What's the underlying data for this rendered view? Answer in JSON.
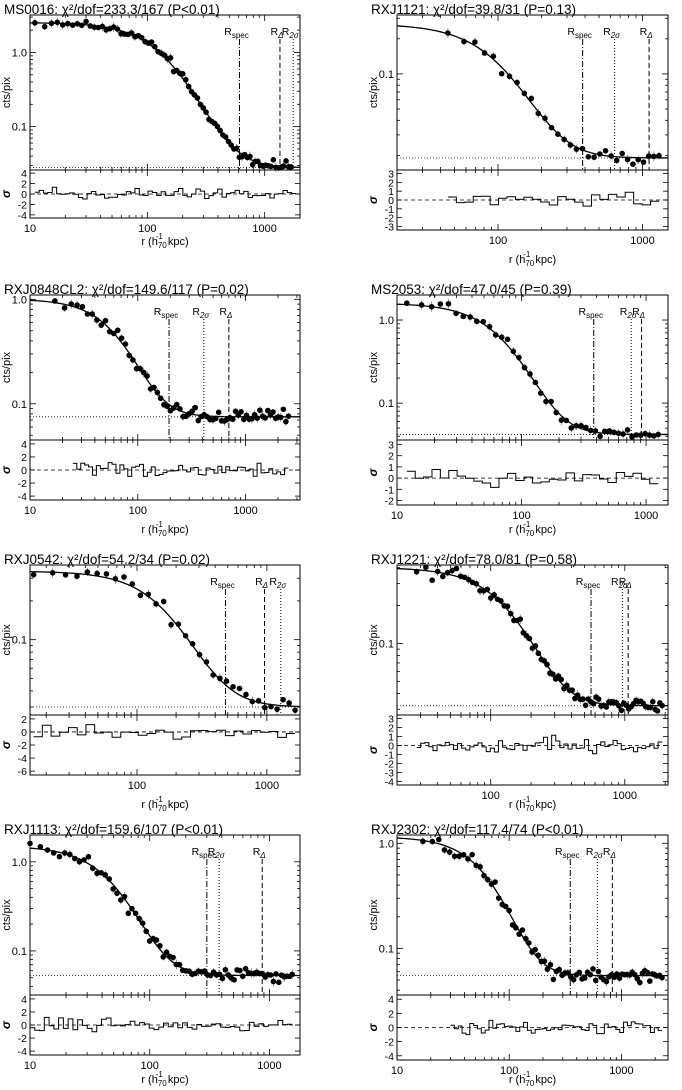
{
  "figure": {
    "curve_color": "#000000",
    "point_color": "#000000",
    "background": "#ffffff",
    "shared_xlabel": "r (h70^-1 kpc)",
    "upper_ylabel": "cts/pix",
    "lower_ylabel": "σ"
  },
  "chart_data": [
    {
      "type": "scatter",
      "title": "MS0016: χ²/dof=233.3/167 (P<0.01)",
      "xlabel": "r (h70^-1 kpc)",
      "ylabel": "cts/pix",
      "xscale": "log",
      "yscale": "log",
      "xlim": [
        10,
        2000
      ],
      "ylim": [
        0.026,
        3.2
      ],
      "xticks": [
        10,
        100,
        1000
      ],
      "yticks": [
        0.1,
        1.0
      ],
      "ytick_labels": [
        "0.1",
        "1.0"
      ],
      "model": {
        "S0": 2.5,
        "rc": 150,
        "beta": 0.75,
        "bg": 0.028
      },
      "background_level": 0.028,
      "data_points": {
        "r_min": 11,
        "r_max": 1850,
        "n": 80,
        "scatter_dex": 0.04
      },
      "markers": [
        {
          "label": "R_spec",
          "r": 610,
          "style": "dashdot"
        },
        {
          "label": "R_Δ",
          "r": 1350,
          "style": "dashed"
        },
        {
          "label": "R_2σ",
          "r": 1750,
          "style": "dotted"
        }
      ],
      "residuals": {
        "ylabel": "σ",
        "ylim": [
          -4.6,
          4.6
        ],
        "yticks": [
          -4,
          -2,
          0,
          2,
          4
        ],
        "amplitude": 1.3,
        "bin_start": 11,
        "bin_end": 1850,
        "n_bins": 60
      }
    },
    {
      "type": "scatter",
      "title": "RXJ1121: χ²/dof=39.8/31 (P=0.13)",
      "xlabel": "r (h70^-1 kpc)",
      "ylabel": "cts/pix",
      "xscale": "log",
      "yscale": "log",
      "xlim": [
        20,
        1500
      ],
      "ylim": [
        0.015,
        0.32
      ],
      "xticks": [
        100,
        1000
      ],
      "yticks": [
        0.1
      ],
      "ytick_labels": [
        "0.1"
      ],
      "model": {
        "S0": 0.25,
        "rc": 130,
        "beta": 0.8,
        "bg": 0.019
      },
      "background_level": 0.019,
      "data_points": {
        "r_min": 45,
        "r_max": 1300,
        "n": 32,
        "scatter_dex": 0.04
      },
      "markers": [
        {
          "label": "R_spec",
          "r": 385,
          "style": "dashdot"
        },
        {
          "label": "R_2σ",
          "r": 640,
          "style": "dotted"
        },
        {
          "label": "R_Δ",
          "r": 1110,
          "style": "dashed"
        }
      ],
      "residuals": {
        "ylabel": "σ",
        "ylim": [
          -3.4,
          3.4
        ],
        "yticks": [
          -3,
          -2,
          -1,
          0,
          1,
          2,
          3
        ],
        "amplitude": 1.1,
        "bin_start": 45,
        "bin_end": 1300,
        "n_bins": 25
      }
    },
    {
      "type": "scatter",
      "title": "RXJ0848CL2: χ²/dof=149.6/117 (P=0.02)",
      "xlabel": "r (h70^-1 kpc)",
      "ylabel": "cts/pix",
      "xscale": "log",
      "yscale": "log",
      "xlim": [
        10,
        3200
      ],
      "ylim": [
        0.045,
        1.1
      ],
      "xticks": [
        10,
        100,
        1000
      ],
      "yticks": [
        0.1,
        1.0
      ],
      "ytick_labels": [
        "0.1",
        "1.0"
      ],
      "model": {
        "S0": 0.93,
        "rc": 80,
        "beta": 0.8,
        "bg": 0.075
      },
      "background_level": 0.075,
      "data_points": {
        "r_min": 17,
        "r_max": 2500,
        "n": 70,
        "scatter_dex": 0.05
      },
      "markers": [
        {
          "label": "R_spec",
          "r": 195,
          "style": "dashdot"
        },
        {
          "label": "R_2σ",
          "r": 410,
          "style": "dotted"
        },
        {
          "label": "R_Δ",
          "r": 700,
          "style": "dashed"
        }
      ],
      "residuals": {
        "ylabel": "σ",
        "ylim": [
          -4.6,
          4.6
        ],
        "yticks": [
          -4,
          -2,
          0,
          2,
          4
        ],
        "amplitude": 1.4,
        "bin_start": 25,
        "bin_end": 2500,
        "n_bins": 55
      }
    },
    {
      "type": "scatter",
      "title": "MS2053: χ²/dof=47.0/45 (P=0.39)",
      "xlabel": "r (h70^-1 kpc)",
      "ylabel": "cts/pix",
      "xscale": "log",
      "yscale": "log",
      "xlim": [
        10,
        1500
      ],
      "ylim": [
        0.036,
        2.0
      ],
      "xticks": [
        10,
        100,
        1000
      ],
      "yticks": [
        0.1,
        1.0
      ],
      "ytick_labels": [
        "0.1",
        "1.0"
      ],
      "model": {
        "S0": 1.55,
        "rc": 85,
        "beta": 0.85,
        "bg": 0.042
      },
      "background_level": 0.042,
      "data_points": {
        "r_min": 12,
        "r_max": 1250,
        "n": 45,
        "scatter_dex": 0.04
      },
      "markers": [
        {
          "label": "R_spec",
          "r": 380,
          "style": "dashdot"
        },
        {
          "label": "R_2σ",
          "r": 760,
          "style": "dotted"
        },
        {
          "label": "R_Δ",
          "r": 920,
          "style": "dashed"
        }
      ],
      "residuals": {
        "ylabel": "σ",
        "ylim": [
          -2.4,
          3.4
        ],
        "yticks": [
          -2,
          -1,
          0,
          1,
          2,
          3
        ],
        "amplitude": 1.0,
        "bin_start": 12,
        "bin_end": 1250,
        "n_bins": 30
      }
    },
    {
      "type": "scatter",
      "title": "RXJ0542: χ²/dof=54.2/34 (P=0.02)",
      "xlabel": "r (h70^-1 kpc)",
      "ylabel": "cts/pix",
      "xscale": "log",
      "yscale": "log",
      "xlim": [
        15,
        1800
      ],
      "ylim": [
        0.026,
        0.38
      ],
      "xticks": [
        100,
        1000
      ],
      "yticks": [
        0.1
      ],
      "ytick_labels": [
        "0.1"
      ],
      "model": {
        "S0": 0.31,
        "rc": 200,
        "beta": 0.7,
        "bg": 0.03
      },
      "background_level": 0.03,
      "data_points": {
        "r_min": 16,
        "r_max": 1650,
        "n": 34,
        "scatter_dex": 0.04
      },
      "markers": [
        {
          "label": "R_spec",
          "r": 480,
          "style": "dashdot"
        },
        {
          "label": "R_Δ",
          "r": 960,
          "style": "dashed"
        },
        {
          "label": "R_2σ",
          "r": 1280,
          "style": "dotted"
        }
      ],
      "residuals": {
        "ylabel": "σ",
        "ylim": [
          -6.6,
          2.6
        ],
        "yticks": [
          -6,
          -4,
          -2,
          0,
          2
        ],
        "amplitude": 1.5,
        "bin_start": 16,
        "bin_end": 1650,
        "n_bins": 30
      }
    },
    {
      "type": "scatter",
      "title": "RXJ1221: χ²/dof=78.0/81 (P=0.58)",
      "xlabel": "r (h70^-1 kpc)",
      "ylabel": "cts/pix",
      "xscale": "log",
      "yscale": "log",
      "xlim": [
        20,
        2100
      ],
      "ylim": [
        0.027,
        0.42
      ],
      "xticks": [
        100,
        1000
      ],
      "yticks": [
        0.1
      ],
      "ytick_labels": [
        "0.1"
      ],
      "model": {
        "S0": 0.37,
        "rc": 190,
        "beta": 0.9,
        "bg": 0.032
      },
      "background_level": 0.032,
      "data_points": {
        "r_min": 28,
        "r_max": 1900,
        "n": 80,
        "scatter_dex": 0.035
      },
      "markers": [
        {
          "label": "R_spec",
          "r": 560,
          "style": "dashdot"
        },
        {
          "label": "R_2σ",
          "r": 960,
          "style": "dotted"
        },
        {
          "label": "R_Δ",
          "r": 1060,
          "style": "dashed"
        }
      ],
      "residuals": {
        "ylabel": "σ",
        "ylim": [
          -4.4,
          3.4
        ],
        "yticks": [
          -4,
          -3,
          -2,
          -1,
          0,
          1,
          2,
          3
        ],
        "amplitude": 1.2,
        "bin_start": 28,
        "bin_end": 1900,
        "n_bins": 60
      }
    },
    {
      "type": "scatter",
      "title": "RXJ1113: χ²/dof=159.6/107 (P<0.01)",
      "xlabel": "r (h70^-1 kpc)",
      "ylabel": "cts/pix",
      "xscale": "log",
      "yscale": "log",
      "xlim": [
        10,
        1800
      ],
      "ylim": [
        0.032,
        2.0
      ],
      "xticks": [
        10,
        100,
        1000
      ],
      "yticks": [
        0.1,
        1.0
      ],
      "ytick_labels": [
        "0.1",
        "1.0"
      ],
      "model": {
        "S0": 1.45,
        "rc": 60,
        "beta": 0.85,
        "bg": 0.053
      },
      "background_level": 0.053,
      "data_points": {
        "r_min": 10,
        "r_max": 1550,
        "n": 75,
        "scatter_dex": 0.06
      },
      "markers": [
        {
          "label": "R_spec",
          "r": 300,
          "style": "dashdot"
        },
        {
          "label": "R_2σ",
          "r": 380,
          "style": "dotted"
        },
        {
          "label": "R_Δ",
          "r": 870,
          "style": "dashed"
        }
      ],
      "residuals": {
        "ylabel": "σ",
        "ylim": [
          -4.6,
          4.6
        ],
        "yticks": [
          -4,
          -2,
          0,
          2,
          4
        ],
        "amplitude": 1.5,
        "bin_start": 10,
        "bin_end": 1550,
        "n_bins": 55
      }
    },
    {
      "type": "scatter",
      "title": "RXJ2302: χ²/dof=117.4/74 (P<0.01)",
      "xlabel": "r (h70^-1 kpc)",
      "ylabel": "cts/pix",
      "xscale": "log",
      "yscale": "log",
      "xlim": [
        10,
        2600
      ],
      "ylim": [
        0.036,
        1.2
      ],
      "xticks": [
        10,
        100,
        1000
      ],
      "yticks": [
        0.1,
        1.0
      ],
      "ytick_labels": [
        "0.1",
        "1.0"
      ],
      "model": {
        "S0": 1.1,
        "rc": 85,
        "beta": 0.9,
        "bg": 0.055
      },
      "background_level": 0.055,
      "data_points": {
        "r_min": 17,
        "r_max": 2300,
        "n": 75,
        "scatter_dex": 0.05
      },
      "markers": [
        {
          "label": "R_spec",
          "r": 350,
          "style": "dashdot"
        },
        {
          "label": "R_2σ",
          "r": 610,
          "style": "dotted"
        },
        {
          "label": "R_Δ",
          "r": 830,
          "style": "dashed"
        }
      ],
      "residuals": {
        "ylabel": "σ",
        "ylim": [
          -4.6,
          4.6
        ],
        "yticks": [
          -4,
          -2,
          0,
          2,
          4
        ],
        "amplitude": 1.2,
        "bin_start": 30,
        "bin_end": 2300,
        "n_bins": 55
      }
    }
  ]
}
